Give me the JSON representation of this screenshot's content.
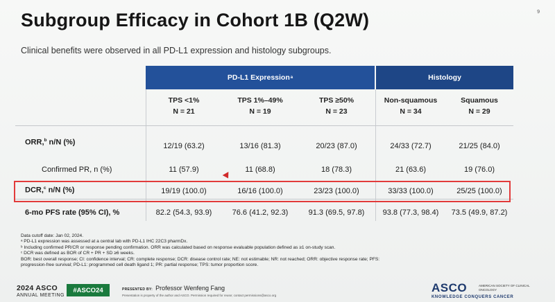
{
  "slide_number": "9",
  "title": "Subgroup Efficacy in Cohort 1B (Q2W)",
  "subtitle": "Clinical benefits were observed in all PD-L1 expression and histology subgroups.",
  "table": {
    "group_headers": {
      "pdl1": "PD-L1 Expression",
      "pdl1_sup": "a",
      "histology": "Histology"
    },
    "columns": [
      {
        "name": "TPS <1%",
        "n": "N = 21"
      },
      {
        "name": "TPS 1%–49%",
        "n": "N = 19"
      },
      {
        "name": "TPS ≥50%",
        "n": "N = 23"
      },
      {
        "name": "Non-squamous",
        "n": "N = 34"
      },
      {
        "name": "Squamous",
        "n": "N = 29"
      }
    ],
    "rows": [
      {
        "label": "ORR,",
        "sup": "b",
        "label_tail": " n/N (%)",
        "values": [
          "12/19 (63.2)",
          "13/16 (81.3)",
          "20/23 (87.0)",
          "24/33 (72.7)",
          "21/25 (84.0)"
        ]
      },
      {
        "label": "Confirmed PR, n (%)",
        "sup": "",
        "label_tail": "",
        "values": [
          "11 (57.9)",
          "11 (68.8)",
          "18 (78.3)",
          "21 (63.6)",
          "19 (76.0)"
        ]
      },
      {
        "label": "DCR,",
        "sup": "c",
        "label_tail": " n/N (%)",
        "values": [
          "19/19 (100.0)",
          "16/16 (100.0)",
          "23/23 (100.0)",
          "33/33 (100.0)",
          "25/25 (100.0)"
        ]
      },
      {
        "label": "6-mo PFS rate (95% CI), %",
        "sup": "",
        "label_tail": "",
        "values": [
          "82.2 (54.3, 93.9)",
          "76.6 (41.2, 92.3)",
          "91.3 (69.5, 97.8)",
          "93.8 (77.3, 98.4)",
          "73.5 (49.9, 87.2)"
        ]
      }
    ]
  },
  "footnotes": [
    "Data cutoff date: Jan 02, 2024.",
    "ᵃ PD-L1 expression was assessed at a central lab with PD-L1 IHC 22C3 pharmDx.",
    "ᵇ Including confirmed PR/CR or response pending confirmation. ORR was calculated based on response evaluable population defined as ≥1 on-study scan.",
    "ᶜ DCR was defined as BOR of CR + PR + SD ≥6 weeks.",
    "BOR: best overall response; CI: confidence interval; CR: complete response; DCR: disease control rate; NE: not estimable; NR: not reached; ORR: objective response rate; PFS:",
    "progression-free survival; PD-L1: programmed cell death ligand 1; PR: partial response; TPS: tumor proportion score."
  ],
  "footer": {
    "asco_year": "2024 ASCO",
    "asco_meeting": "ANNUAL MEETING",
    "hashtag": "#ASCO24",
    "presented_by_label": "PRESENTED BY:",
    "presenter": "Professor Wenfeng Fang",
    "permission": "Presentation is property of the author and ASCO. Permission required for reuse; contact permissions@asco.org",
    "logo": "ASCO",
    "society": "AMERICAN SOCIETY OF CLINICAL ONCOLOGY",
    "tagline": "KNOWLEDGE CONQUERS CANCER"
  },
  "colors": {
    "pdl1_header": "#23519a",
    "histology_header": "#1e4686",
    "highlight": "#e23a3a",
    "hashtag_bg": "#1a7a3d"
  }
}
